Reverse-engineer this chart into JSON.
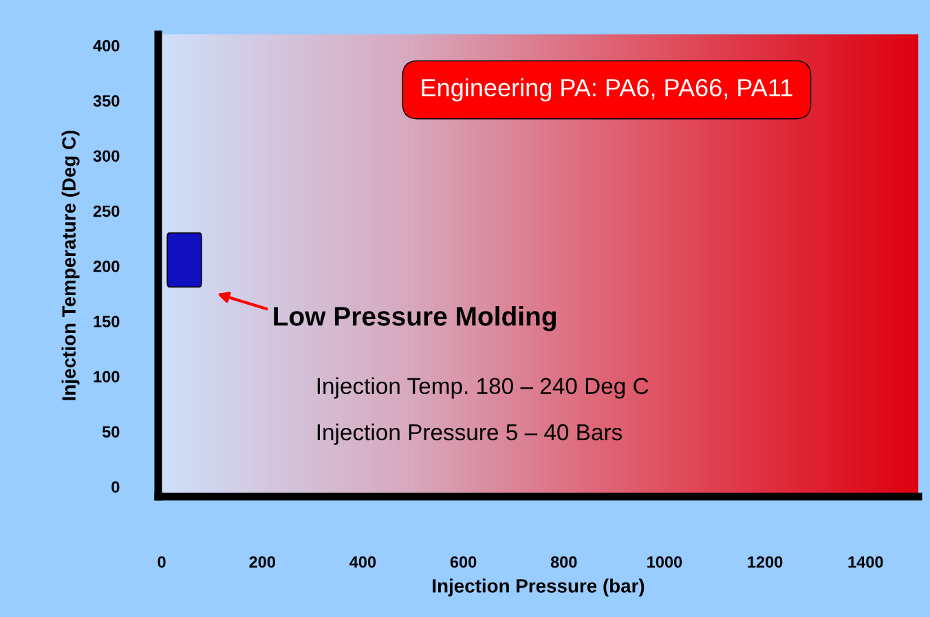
{
  "chart_data": {
    "type": "bar",
    "xlabel": "Injection Pressure (bar)",
    "ylabel": "Injection Temperature (Deg C)",
    "x": [
      45
    ],
    "base": [
      181
    ],
    "values": [
      49
    ],
    "color": "#1010c0",
    "xlim": [
      -7,
      1505
    ],
    "ylim": [
      -9,
      410
    ],
    "xticks": [
      0,
      200,
      400,
      600,
      800,
      1000,
      1200,
      1400
    ],
    "yticks": [
      0,
      50,
      100,
      150,
      200,
      250,
      300,
      350,
      400
    ],
    "grid": false,
    "legend": false,
    "annotations": [
      "Engineering PA: PA6, PA66, PA11",
      "Low Pressure Molding",
      "Injection Temp. 180 – 240 Deg C",
      "Injection Pressure 5 – 40 Bars"
    ]
  }
}
